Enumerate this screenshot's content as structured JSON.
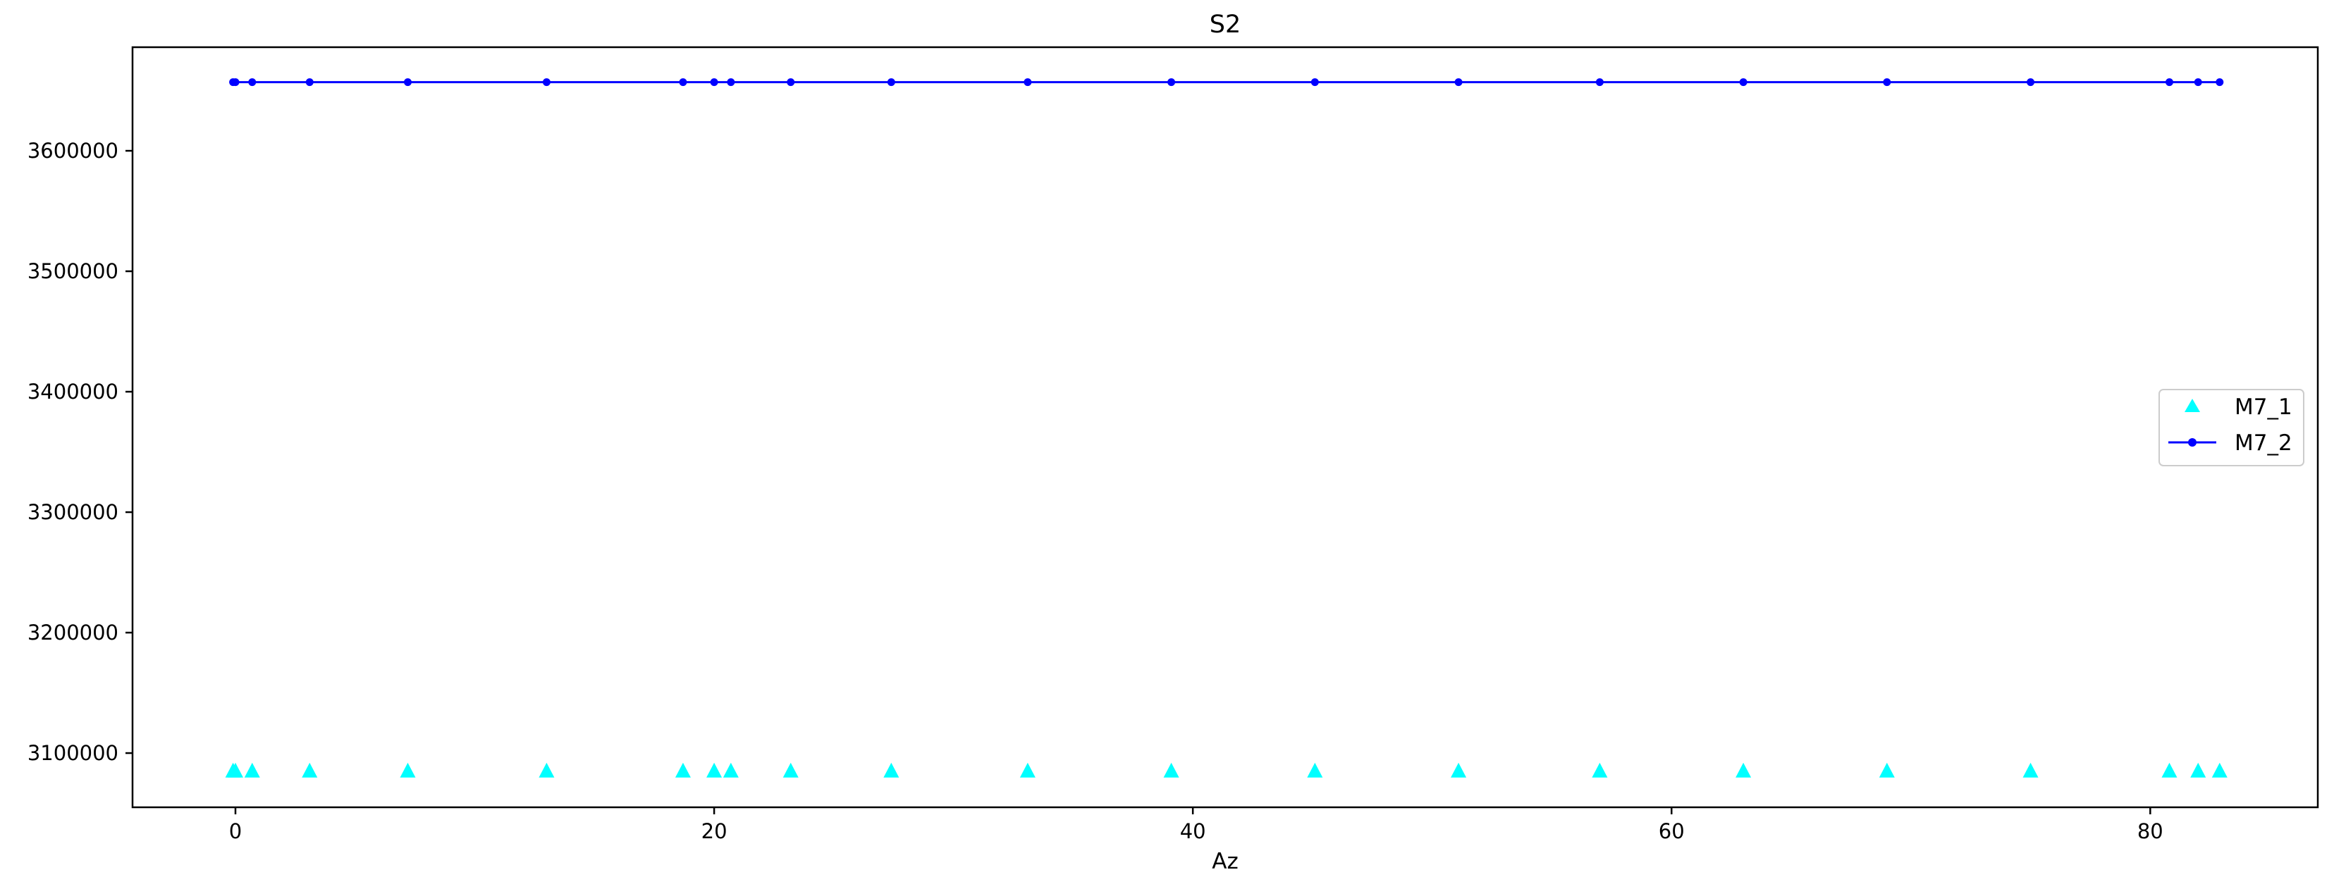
{
  "chart_data": {
    "type": "line",
    "title": "S2",
    "xlabel": "Az",
    "ylabel": "",
    "xlim": [
      -4.3,
      87.0
    ],
    "ylim": [
      3055000,
      3686000
    ],
    "xticks": [
      0,
      20,
      40,
      60,
      80
    ],
    "xtick_labels": [
      "0",
      "20",
      "40",
      "60",
      "80"
    ],
    "yticks": [
      3100000,
      3200000,
      3300000,
      3400000,
      3500000,
      3600000
    ],
    "ytick_labels": [
      "3100000",
      "3200000",
      "3300000",
      "3400000",
      "3500000",
      "3600000"
    ],
    "grid": false,
    "legend_position": "center-right",
    "x": [
      -0.1,
      0.0,
      0.7,
      3.1,
      7.2,
      13.0,
      18.7,
      20.0,
      20.7,
      23.2,
      27.4,
      33.1,
      39.1,
      45.1,
      51.1,
      57.0,
      63.0,
      69.0,
      75.0,
      80.8,
      82.0,
      82.9
    ],
    "series": [
      {
        "name": "M7_1",
        "style": "scatter",
        "marker": "triangle",
        "color": "#00ffff",
        "values": [
          3085000,
          3085000,
          3085000,
          3085000,
          3085000,
          3085000,
          3085000,
          3085000,
          3085000,
          3085000,
          3085000,
          3085000,
          3085000,
          3085000,
          3085000,
          3085000,
          3085000,
          3085000,
          3085000,
          3085000,
          3085000,
          3085000
        ]
      },
      {
        "name": "M7_2",
        "style": "line",
        "marker": "circle",
        "color": "#0000ff",
        "values": [
          3657000,
          3657000,
          3657000,
          3657000,
          3657000,
          3657000,
          3657000,
          3657000,
          3657000,
          3657000,
          3657000,
          3657000,
          3657000,
          3657000,
          3657000,
          3657000,
          3657000,
          3657000,
          3657000,
          3657000,
          3657000,
          3657000
        ]
      }
    ]
  }
}
